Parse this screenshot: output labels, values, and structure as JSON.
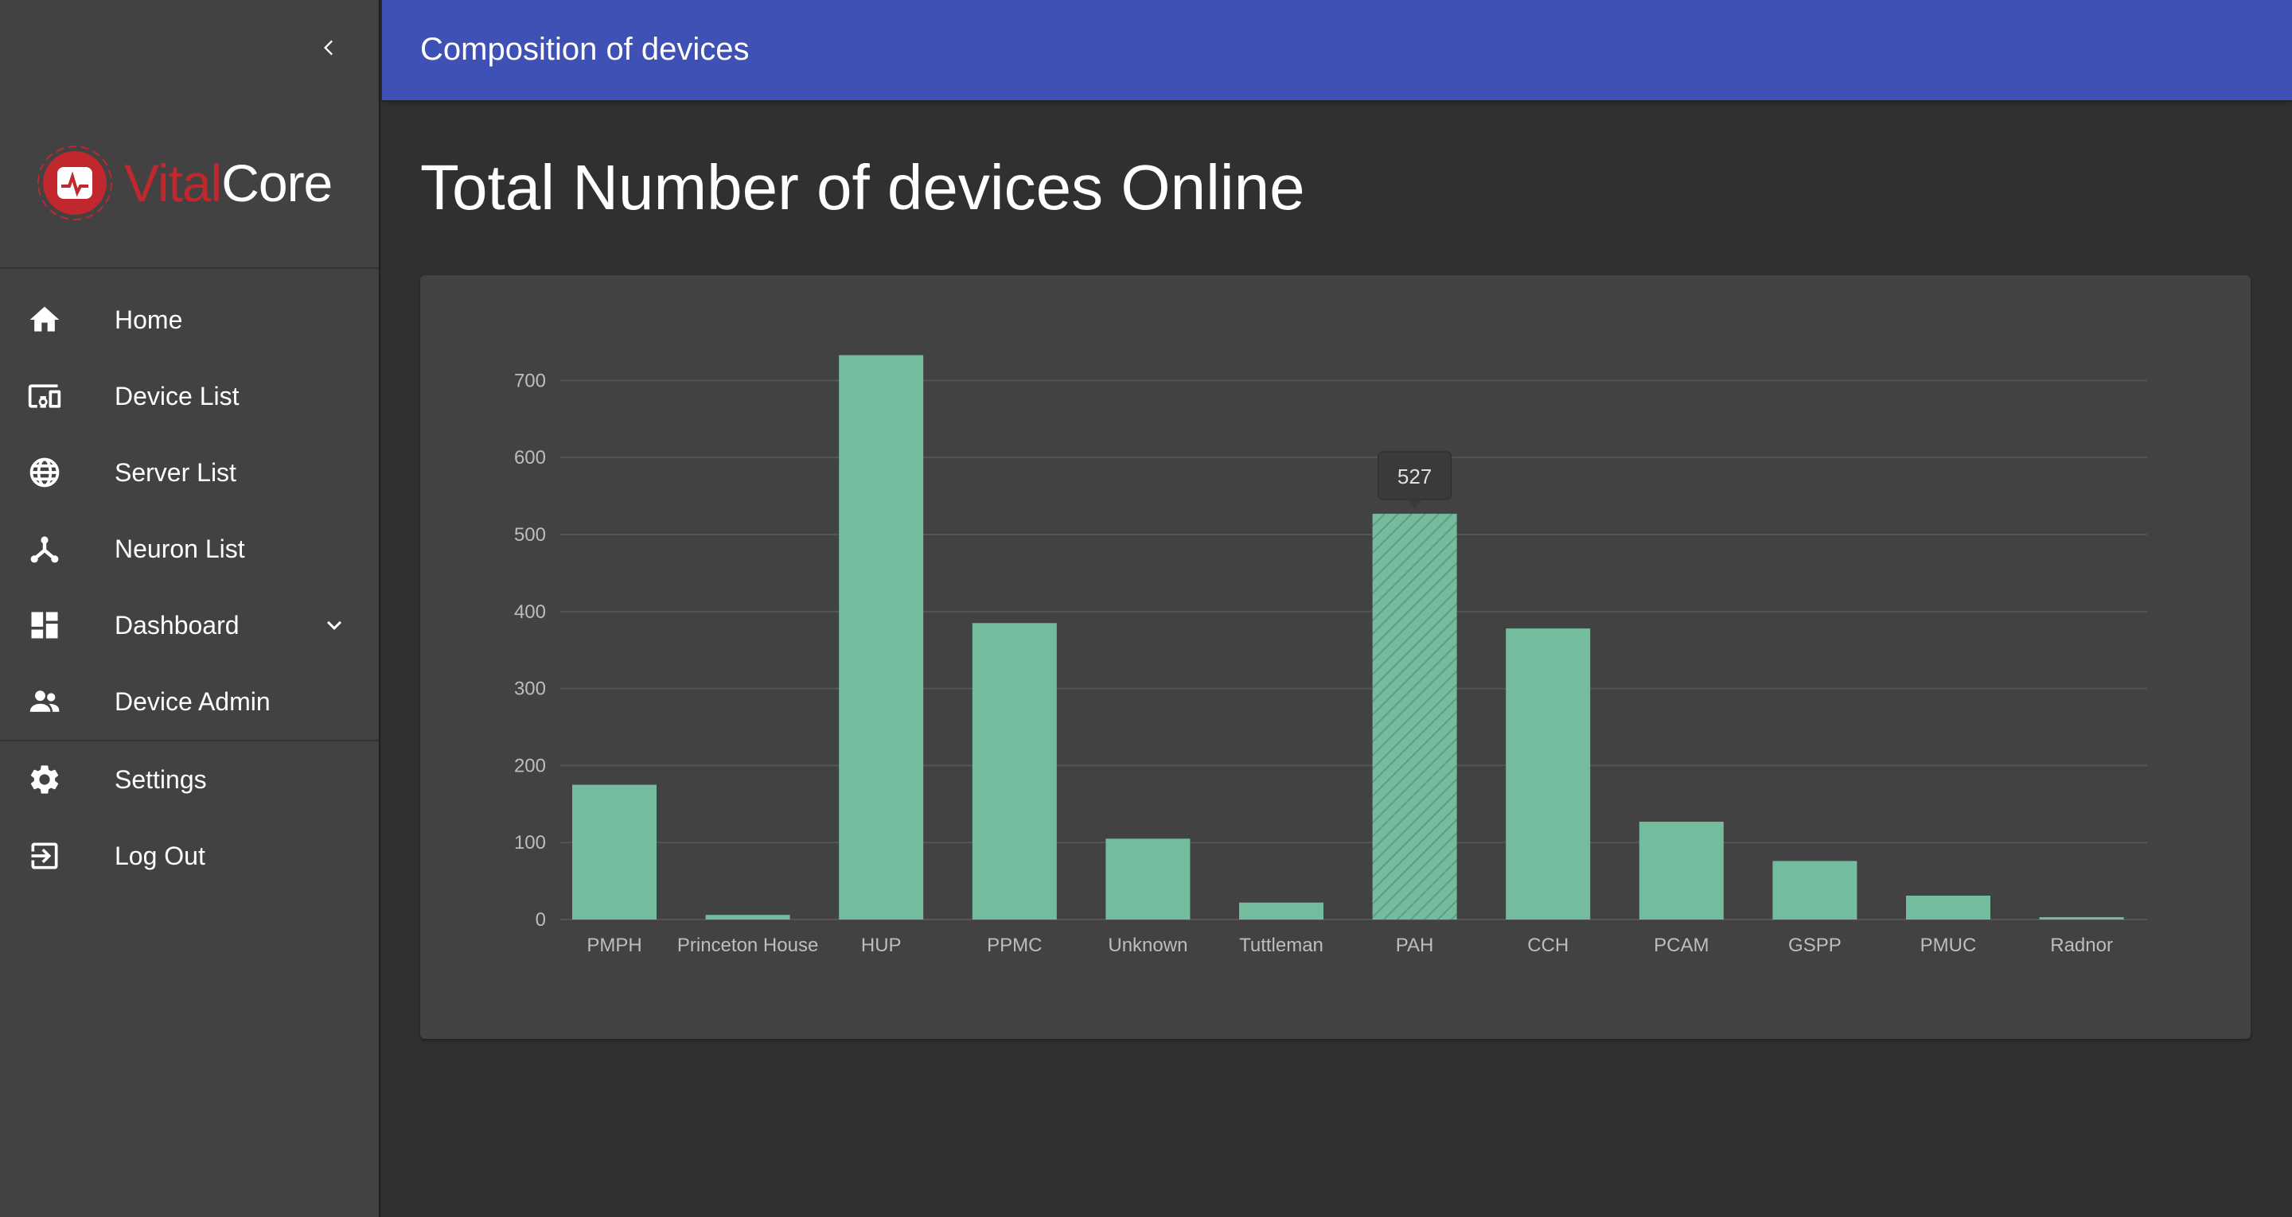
{
  "app": {
    "logo_text_a": "Vital",
    "logo_text_b": "Core",
    "brand_red": "#c0282d"
  },
  "sidebar": {
    "collapse_icon": "chevron-left-icon",
    "items": [
      {
        "label": "Home",
        "icon": "home-icon"
      },
      {
        "label": "Device List",
        "icon": "devices-icon"
      },
      {
        "label": "Server List",
        "icon": "globe-icon"
      },
      {
        "label": "Neuron List",
        "icon": "hub-icon"
      },
      {
        "label": "Dashboard",
        "icon": "dashboard-icon",
        "expand_icon": "chevron-down-icon"
      },
      {
        "label": "Device Admin",
        "icon": "people-icon"
      }
    ],
    "secondary_items": [
      {
        "label": "Settings",
        "icon": "gear-icon"
      },
      {
        "label": "Log Out",
        "icon": "logout-icon"
      }
    ]
  },
  "header": {
    "title": "Composition of devices",
    "color": "#3f51b5"
  },
  "main": {
    "page_title": "Total Number of devices Online"
  },
  "chart_data": {
    "type": "bar",
    "categories": [
      "PMPH",
      "Princeton House",
      "HUP",
      "PPMC",
      "Unknown",
      "Tuttleman",
      "PAH",
      "CCH",
      "PCAM",
      "GSPP",
      "PMUC",
      "Radnor"
    ],
    "values": [
      175,
      6,
      733,
      385,
      105,
      22,
      527,
      378,
      127,
      76,
      31,
      3
    ],
    "ylim": [
      0,
      700
    ],
    "yticks": [
      0,
      100,
      200,
      300,
      400,
      500,
      600,
      700
    ],
    "grid": true,
    "bar_color": "#75bc9e",
    "tooltip": {
      "category": "PAH",
      "value": "527"
    }
  }
}
